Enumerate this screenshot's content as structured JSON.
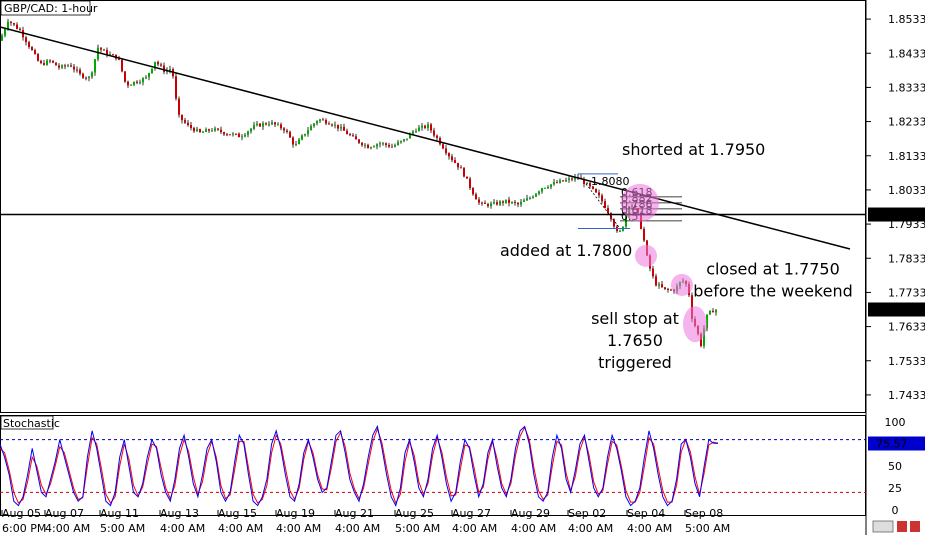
{
  "chart_data": {
    "type": "candlestick",
    "title": "GBP/CAD: 1-hour",
    "price_axis": {
      "ticks": [
        "1.8533",
        "1.8433",
        "1.8333",
        "1.8233",
        "1.8133",
        "1.8033",
        "1.7933",
        "1.7833",
        "1.7733",
        "1.7633",
        "1.7533",
        "1.7433"
      ],
      "range": [
        1.7383,
        1.8583
      ],
      "current_level_label": "1.7961",
      "current_level_value": 1.7961,
      "last_price_label": "1.7683",
      "last_price_value": 1.7683
    },
    "time_axis": {
      "labels": [
        {
          "date": "Aug 05",
          "time": "6:00 PM"
        },
        {
          "date": "Aug 07",
          "time": "4:00 AM"
        },
        {
          "date": "Aug 11",
          "time": "5:00 AM"
        },
        {
          "date": "Aug 13",
          "time": "4:00 AM"
        },
        {
          "date": "Aug 15",
          "time": "4:00 AM"
        },
        {
          "date": "Aug 19",
          "time": "4:00 AM"
        },
        {
          "date": "Aug 21",
          "time": "4:00 AM"
        },
        {
          "date": "Aug 25",
          "time": "5:00 AM"
        },
        {
          "date": "Aug 27",
          "time": "4:00 AM"
        },
        {
          "date": "Aug 29",
          "time": "4:00 AM"
        },
        {
          "date": "Sep 02",
          "time": "4:00 AM"
        },
        {
          "date": "Sep 04",
          "time": "4:00 AM"
        },
        {
          "date": "Sep 08",
          "time": "5:00 AM"
        }
      ]
    },
    "price_path": [
      [
        0,
        1.847
      ],
      [
        8,
        1.853
      ],
      [
        20,
        1.85
      ],
      [
        30,
        1.845
      ],
      [
        40,
        1.84
      ],
      [
        50,
        1.841
      ],
      [
        60,
        1.839
      ],
      [
        70,
        1.84
      ],
      [
        80,
        1.837
      ],
      [
        90,
        1.836
      ],
      [
        98,
        1.845
      ],
      [
        108,
        1.843
      ],
      [
        118,
        1.842
      ],
      [
        126,
        1.834
      ],
      [
        136,
        1.835
      ],
      [
        146,
        1.836
      ],
      [
        155,
        1.841
      ],
      [
        165,
        1.838
      ],
      [
        172,
        1.839
      ],
      [
        178,
        1.825
      ],
      [
        188,
        1.822
      ],
      [
        200,
        1.82
      ],
      [
        212,
        1.821
      ],
      [
        225,
        1.82
      ],
      [
        240,
        1.819
      ],
      [
        255,
        1.822
      ],
      [
        270,
        1.823
      ],
      [
        285,
        1.821
      ],
      [
        295,
        1.816
      ],
      [
        305,
        1.82
      ],
      [
        318,
        1.824
      ],
      [
        330,
        1.823
      ],
      [
        342,
        1.821
      ],
      [
        355,
        1.818
      ],
      [
        368,
        1.816
      ],
      [
        380,
        1.817
      ],
      [
        392,
        1.816
      ],
      [
        405,
        1.818
      ],
      [
        415,
        1.821
      ],
      [
        428,
        1.822
      ],
      [
        438,
        1.818
      ],
      [
        450,
        1.813
      ],
      [
        462,
        1.809
      ],
      [
        472,
        1.803
      ],
      [
        480,
        1.799
      ],
      [
        492,
        1.799
      ],
      [
        505,
        1.8
      ],
      [
        518,
        1.799
      ],
      [
        530,
        1.801
      ],
      [
        542,
        1.804
      ],
      [
        552,
        1.805
      ],
      [
        565,
        1.806
      ],
      [
        578,
        1.807
      ],
      [
        590,
        1.804
      ],
      [
        600,
        1.801
      ],
      [
        610,
        1.796
      ],
      [
        618,
        1.79
      ],
      [
        622,
        1.792
      ],
      [
        630,
        1.8
      ],
      [
        638,
        1.796
      ],
      [
        643,
        1.79
      ],
      [
        648,
        1.782
      ],
      [
        655,
        1.776
      ],
      [
        665,
        1.774
      ],
      [
        675,
        1.774
      ],
      [
        682,
        1.777
      ],
      [
        688,
        1.775
      ],
      [
        692,
        1.766
      ],
      [
        697,
        1.762
      ],
      [
        701,
        1.758
      ],
      [
        706,
        1.766
      ],
      [
        712,
        1.768
      ],
      [
        718,
        1.7683
      ]
    ],
    "trendline": {
      "from": [
        0,
        1.851
      ],
      "to": [
        850,
        1.786
      ]
    },
    "fib_levels": [
      "0.618",
      "0.882",
      "0.786",
      "0.618",
      "0.5"
    ],
    "fib_top_label": "1.8080",
    "fib_range": {
      "from": [
        578,
        1.808
      ],
      "to": [
        620,
        1.792
      ]
    },
    "annotations": [
      {
        "text": [
          "shorted at 1.7950"
        ],
        "at": [
          622,
          1.8135
        ],
        "marker": [
          640,
          1.7995
        ]
      },
      {
        "text": [
          "added at 1.7800"
        ],
        "at": [
          500,
          1.784
        ],
        "marker": [
          646,
          1.784
        ]
      },
      {
        "text": [
          "closed at 1.7750",
          "before the weekend"
        ],
        "at": [
          773,
          1.7785
        ],
        "marker": [
          682,
          1.7755
        ]
      },
      {
        "text": [
          "sell stop at",
          "1.7650",
          "triggered"
        ],
        "at": [
          635,
          1.764
        ],
        "marker": [
          695,
          1.764
        ]
      }
    ],
    "stochastic": {
      "label": "Stochastic",
      "ticks": [
        "100",
        "75",
        "50",
        "25",
        "0"
      ],
      "levels": [
        80,
        20
      ],
      "current_label": "75.57",
      "current_value": 75.57,
      "series": [
        {
          "name": "%K",
          "values": [
            75,
            60,
            40,
            10,
            5,
            15,
            40,
            70,
            45,
            20,
            15,
            35,
            55,
            80,
            60,
            40,
            20,
            10,
            15,
            60,
            90,
            70,
            40,
            10,
            5,
            20,
            60,
            80,
            50,
            20,
            15,
            30,
            60,
            80,
            70,
            40,
            20,
            10,
            35,
            70,
            85,
            60,
            30,
            15,
            40,
            70,
            80,
            55,
            20,
            10,
            20,
            55,
            85,
            75,
            40,
            10,
            5,
            15,
            35,
            75,
            90,
            70,
            40,
            15,
            10,
            30,
            65,
            80,
            60,
            35,
            20,
            25,
            55,
            85,
            90,
            65,
            35,
            20,
            10,
            30,
            60,
            85,
            95,
            70,
            40,
            15,
            5,
            25,
            65,
            80,
            55,
            25,
            15,
            35,
            70,
            85,
            60,
            30,
            10,
            20,
            55,
            80,
            70,
            40,
            15,
            30,
            65,
            80,
            50,
            25,
            15,
            35,
            70,
            90,
            95,
            75,
            40,
            15,
            10,
            20,
            60,
            85,
            70,
            35,
            20,
            45,
            75,
            85,
            55,
            25,
            15,
            25,
            60,
            85,
            70,
            45,
            15,
            5,
            10,
            25,
            60,
            90,
            70,
            40,
            15,
            5,
            10,
            35,
            75,
            80,
            60,
            30,
            15,
            50,
            80,
            76,
            75.57
          ]
        },
        {
          "name": "%D",
          "values": [
            70,
            65,
            45,
            20,
            8,
            12,
            32,
            60,
            50,
            28,
            18,
            30,
            50,
            72,
            65,
            45,
            25,
            12,
            14,
            50,
            82,
            75,
            48,
            18,
            8,
            15,
            50,
            75,
            58,
            28,
            16,
            26,
            52,
            75,
            72,
            48,
            25,
            13,
            28,
            62,
            80,
            66,
            38,
            18,
            32,
            62,
            78,
            60,
            28,
            13,
            17,
            46,
            78,
            78,
            48,
            18,
            8,
            12,
            28,
            65,
            85,
            75,
            48,
            22,
            12,
            25,
            58,
            78,
            65,
            40,
            24,
            23,
            48,
            78,
            88,
            72,
            42,
            24,
            13,
            25,
            52,
            78,
            92,
            76,
            48,
            22,
            8,
            18,
            55,
            78,
            62,
            32,
            18,
            30,
            62,
            82,
            66,
            38,
            16,
            17,
            46,
            74,
            72,
            48,
            20,
            26,
            58,
            78,
            58,
            30,
            18,
            30,
            62,
            84,
            94,
            80,
            48,
            22,
            12,
            17,
            50,
            78,
            74,
            42,
            22,
            38,
            68,
            83,
            62,
            32,
            18,
            22,
            52,
            78,
            74,
            50,
            22,
            9,
            9,
            20,
            50,
            82,
            75,
            48,
            22,
            9,
            9,
            28,
            66,
            80,
            66,
            38,
            18,
            42,
            74,
            77,
            76
          ]
        }
      ]
    },
    "colors": {
      "bull": "#00aa00",
      "bear": "#cc0000",
      "wick": "#000000",
      "k_line": "#0000ff",
      "d_line": "#ff0000",
      "highlight": "#ee77dd",
      "price_box": "#000000"
    }
  }
}
